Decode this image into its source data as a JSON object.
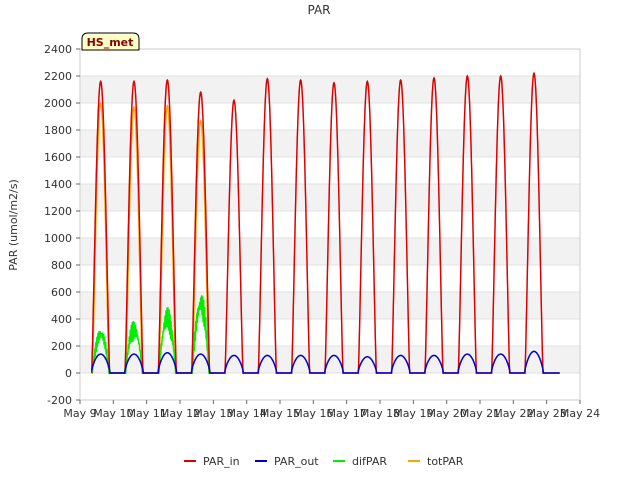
{
  "chart_data": {
    "type": "line",
    "title": "PAR",
    "ylabel": "PAR (umol/m2/s)",
    "xlabel": "",
    "badge": "HS_met",
    "ylim": [
      -200,
      2400
    ],
    "yticks": [
      -200,
      0,
      200,
      400,
      600,
      800,
      1000,
      1200,
      1400,
      1600,
      1800,
      2000,
      2200,
      2400
    ],
    "xlim": [
      9,
      24
    ],
    "xticks": [
      9,
      10,
      11,
      12,
      13,
      14,
      15,
      16,
      17,
      18,
      19,
      20,
      21,
      22,
      23,
      24
    ],
    "xtick_labels": [
      "May 9",
      "May 10",
      "May 11",
      "May 12",
      "May 13",
      "May 14",
      "May 15",
      "May 16",
      "May 17",
      "May 18",
      "May 19",
      "May 20",
      "May 21",
      "May 22",
      "May 23",
      "May 24"
    ],
    "grid": "horizontal bands",
    "legend_position": "bottom",
    "daily_peaks": {
      "days": [
        "May 9",
        "May 10",
        "May 11",
        "May 12",
        "May 13",
        "May 14",
        "May 15",
        "May 16",
        "May 17",
        "May 18",
        "May 19",
        "May 20",
        "May 21",
        "May 22"
      ],
      "PAR_in": [
        2160,
        2160,
        2170,
        2080,
        2020,
        2180,
        2170,
        2150,
        2160,
        2170,
        2185,
        2200,
        2200,
        2220
      ],
      "PAR_out": [
        140,
        140,
        150,
        140,
        130,
        130,
        130,
        130,
        120,
        130,
        130,
        140,
        140,
        160
      ],
      "difPAR": [
        310,
        360,
        430,
        550,
        null,
        null,
        null,
        null,
        null,
        null,
        null,
        null,
        null,
        null
      ],
      "totPAR": [
        2000,
        1970,
        1980,
        1870,
        null,
        null,
        null,
        null,
        null,
        null,
        null,
        null,
        null,
        null
      ]
    },
    "series": [
      {
        "name": "PAR_in",
        "color": "#dd0000"
      },
      {
        "name": "PAR_out",
        "color": "#0000cc"
      },
      {
        "name": "difPAR",
        "color": "#00ee00"
      },
      {
        "name": "totPAR",
        "color": "#ffa500"
      }
    ]
  }
}
